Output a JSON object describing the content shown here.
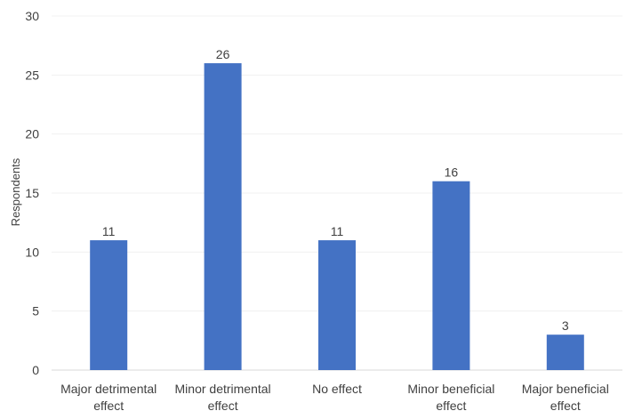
{
  "chart_data": {
    "type": "bar",
    "title": "",
    "xlabel": "",
    "ylabel": "Respondents",
    "categories": [
      [
        "Major detrimental",
        "effect"
      ],
      [
        "Minor detrimental",
        "effect"
      ],
      [
        "No effect"
      ],
      [
        "Minor beneficial",
        "effect"
      ],
      [
        "Major beneficial",
        "effect"
      ]
    ],
    "values": [
      11,
      26,
      11,
      16,
      3
    ],
    "ylim": [
      0,
      30
    ],
    "yticks": [
      0,
      5,
      10,
      15,
      20,
      25,
      30
    ],
    "grid": true,
    "legend": "none",
    "bar_color": "#4472C4"
  }
}
